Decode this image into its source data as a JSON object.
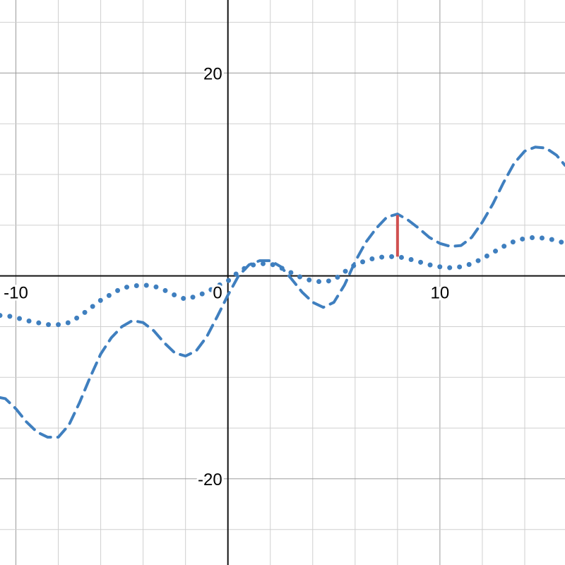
{
  "chart_data": {
    "type": "line",
    "title": "",
    "xlabel": "",
    "ylabel": "",
    "xlim": [
      -10.75,
      15.9
    ],
    "ylim": [
      -28.5,
      27.2
    ],
    "grid": true,
    "x_minor_step": 2,
    "y_minor_step": 5,
    "x_ticks": [
      {
        "value": -10,
        "label": "-10"
      },
      {
        "value": 0,
        "label": "0"
      },
      {
        "value": 10,
        "label": "10"
      }
    ],
    "y_ticks": [
      {
        "value": 20,
        "label": "20"
      },
      {
        "value": -20,
        "label": "-20"
      }
    ],
    "colors": {
      "series": "#3f7fbf",
      "segment": "#d05050",
      "axis": "#111111"
    },
    "series": [
      {
        "style": "dashed",
        "x": [
          -10.75,
          -10.5,
          -10,
          -9.5,
          -9,
          -8.5,
          -8,
          -7.5,
          -7,
          -6.5,
          -6,
          -5.5,
          -5,
          -4.5,
          -4,
          -3.5,
          -3,
          -2.5,
          -2,
          -1.5,
          -1,
          -0.5,
          0,
          0.5,
          1,
          1.5,
          2,
          2.5,
          3,
          3.5,
          4,
          4.5,
          5,
          5.5,
          6,
          6.5,
          7,
          7.5,
          8,
          8.5,
          9,
          9.5,
          10,
          10.5,
          11,
          11.5,
          12,
          12.5,
          13,
          13.5,
          14,
          14.5,
          15,
          15.5,
          15.9
        ],
        "y": [
          -12.0,
          -12.1,
          -13.1,
          -14.4,
          -15.4,
          -15.9,
          -15.9,
          -14.7,
          -12.5,
          -10.0,
          -7.7,
          -6.1,
          -5.0,
          -4.4,
          -4.6,
          -5.4,
          -6.6,
          -7.6,
          -7.9,
          -7.4,
          -6.0,
          -4.0,
          -1.9,
          0.0,
          1.1,
          1.5,
          1.5,
          0.9,
          -0.3,
          -1.6,
          -2.6,
          -3.1,
          -2.6,
          -0.9,
          1.4,
          3.3,
          4.7,
          5.8,
          6.1,
          5.5,
          4.7,
          3.8,
          3.2,
          2.9,
          3.0,
          3.8,
          5.3,
          7.1,
          9.2,
          11.1,
          12.3,
          12.7,
          12.6,
          11.9,
          10.9
        ]
      },
      {
        "style": "dotted",
        "x": [
          -10.75,
          -10.5,
          -10,
          -9.5,
          -9,
          -8.5,
          -8,
          -7.5,
          -7,
          -6.5,
          -6,
          -5.5,
          -5,
          -4.5,
          -4,
          -3.5,
          -3,
          -2.5,
          -2,
          -1.5,
          -1,
          -0.5,
          0,
          0.5,
          1,
          1.5,
          2,
          2.5,
          3,
          3.5,
          4,
          4.5,
          5,
          5.5,
          6,
          6.5,
          7,
          7.5,
          8,
          8.5,
          9,
          9.5,
          10,
          10.5,
          11,
          11.5,
          12,
          12.5,
          13,
          13.5,
          14,
          14.5,
          15,
          15.5,
          15.9
        ],
        "y": [
          -3.9,
          -3.9,
          -4.1,
          -4.4,
          -4.6,
          -4.8,
          -4.8,
          -4.6,
          -4.0,
          -3.2,
          -2.4,
          -1.8,
          -1.2,
          -1.0,
          -0.9,
          -1.0,
          -1.4,
          -1.9,
          -2.3,
          -2.0,
          -1.6,
          -1.0,
          -0.5,
          0.4,
          1.0,
          1.2,
          1.2,
          0.8,
          0.3,
          -0.2,
          -0.5,
          -0.6,
          -0.4,
          0.4,
          1.1,
          1.5,
          1.8,
          1.9,
          1.9,
          1.7,
          1.4,
          1.1,
          0.9,
          0.8,
          0.9,
          1.2,
          1.7,
          2.3,
          2.9,
          3.4,
          3.7,
          3.8,
          3.7,
          3.5,
          3.2
        ]
      }
    ],
    "segments": [
      {
        "x": 8,
        "y1": 1.9,
        "y2": 6.0
      }
    ]
  }
}
